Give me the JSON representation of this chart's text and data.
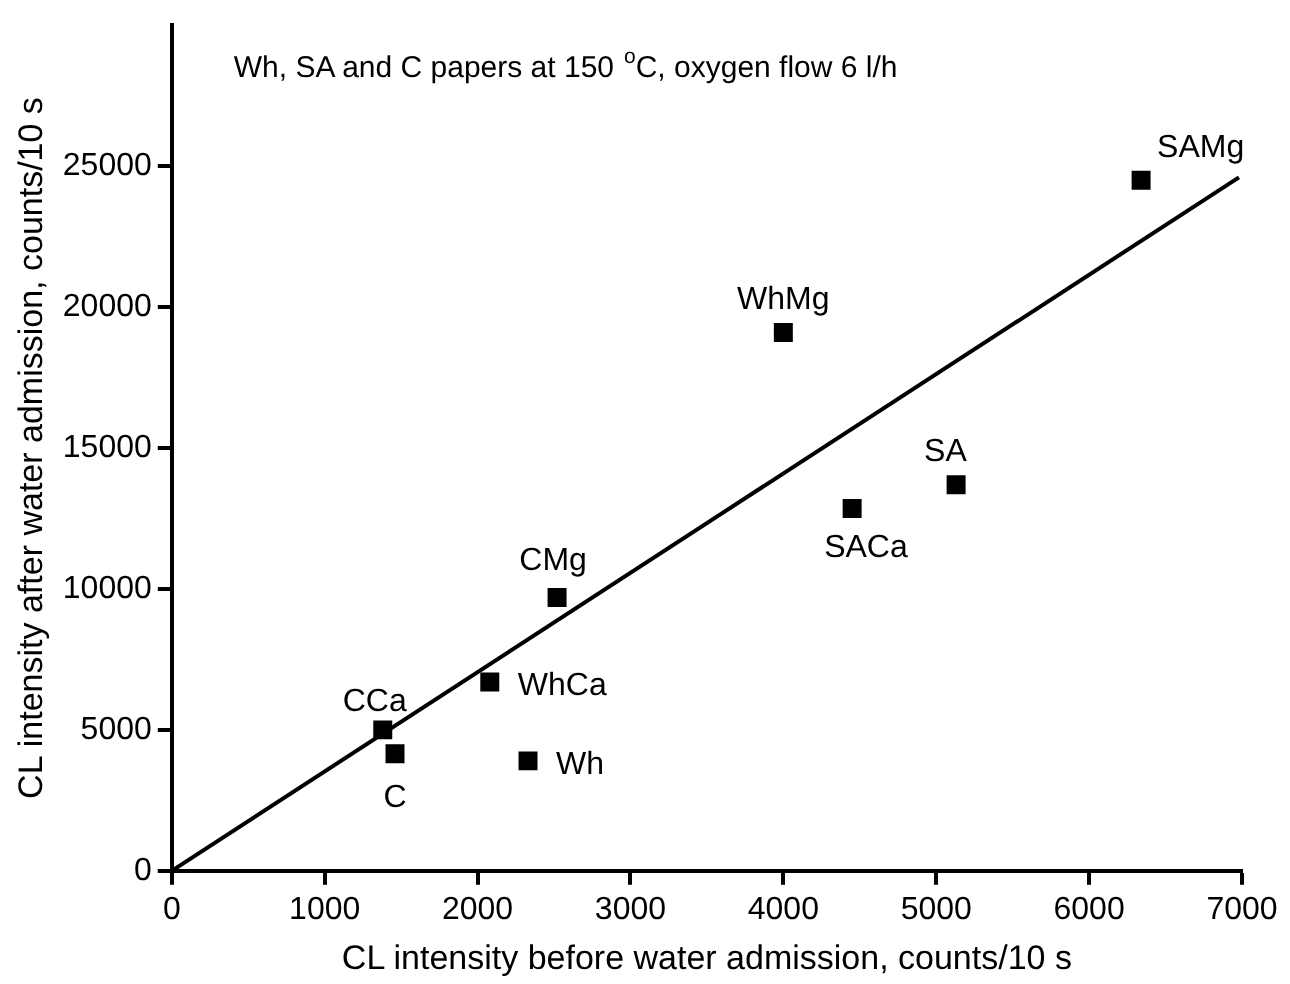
{
  "chart_data": {
    "type": "scatter",
    "xlabel": "CL intensity before water admission, counts/10 s",
    "ylabel": "CL intensity after water admission, counts/10 s",
    "xlim": [
      0,
      7000
    ],
    "xticks": [
      0,
      1000,
      2000,
      3000,
      4000,
      5000,
      6000,
      7000
    ],
    "ylim": [
      0,
      30000
    ],
    "yticks": [
      0,
      5000,
      10000,
      15000,
      20000,
      25000
    ],
    "grid": false,
    "legend": false,
    "marker": "square",
    "series": [
      {
        "color": "#000000",
        "x": [
          6340,
          4000,
          5130,
          4450,
          2520,
          2080,
          1380,
          1460,
          2330
        ],
        "values": [
          24500,
          19100,
          13700,
          12850,
          9700,
          6700,
          5000,
          4150,
          3900
        ]
      },
      {
        "type": "line",
        "color": "#000000",
        "line_style": "solid",
        "marker": "none",
        "x": [
          0,
          6980
        ],
        "values": [
          0,
          24600
        ]
      }
    ],
    "annotations": [
      "Wh, SA and C papers at 150 $^{o}$C, oxygen flow 6 l/h",
      {
        "text": "SAMg",
        "x": 6340,
        "y": 24500
      },
      {
        "text": "WhMg",
        "x": 4000,
        "y": 19100
      },
      {
        "text": "SA",
        "x": 5130,
        "y": 13700
      },
      {
        "text": "SACa",
        "x": 4450,
        "y": 12850
      },
      {
        "text": "CMg",
        "x": 2520,
        "y": 9700
      },
      {
        "text": "WhCa",
        "x": 2080,
        "y": 6700
      },
      {
        "text": "CCa",
        "x": 1380,
        "y": 5000
      },
      {
        "text": "C",
        "x": 1460,
        "y": 4150
      },
      {
        "text": "Wh",
        "x": 2330,
        "y": 3900
      }
    ]
  }
}
